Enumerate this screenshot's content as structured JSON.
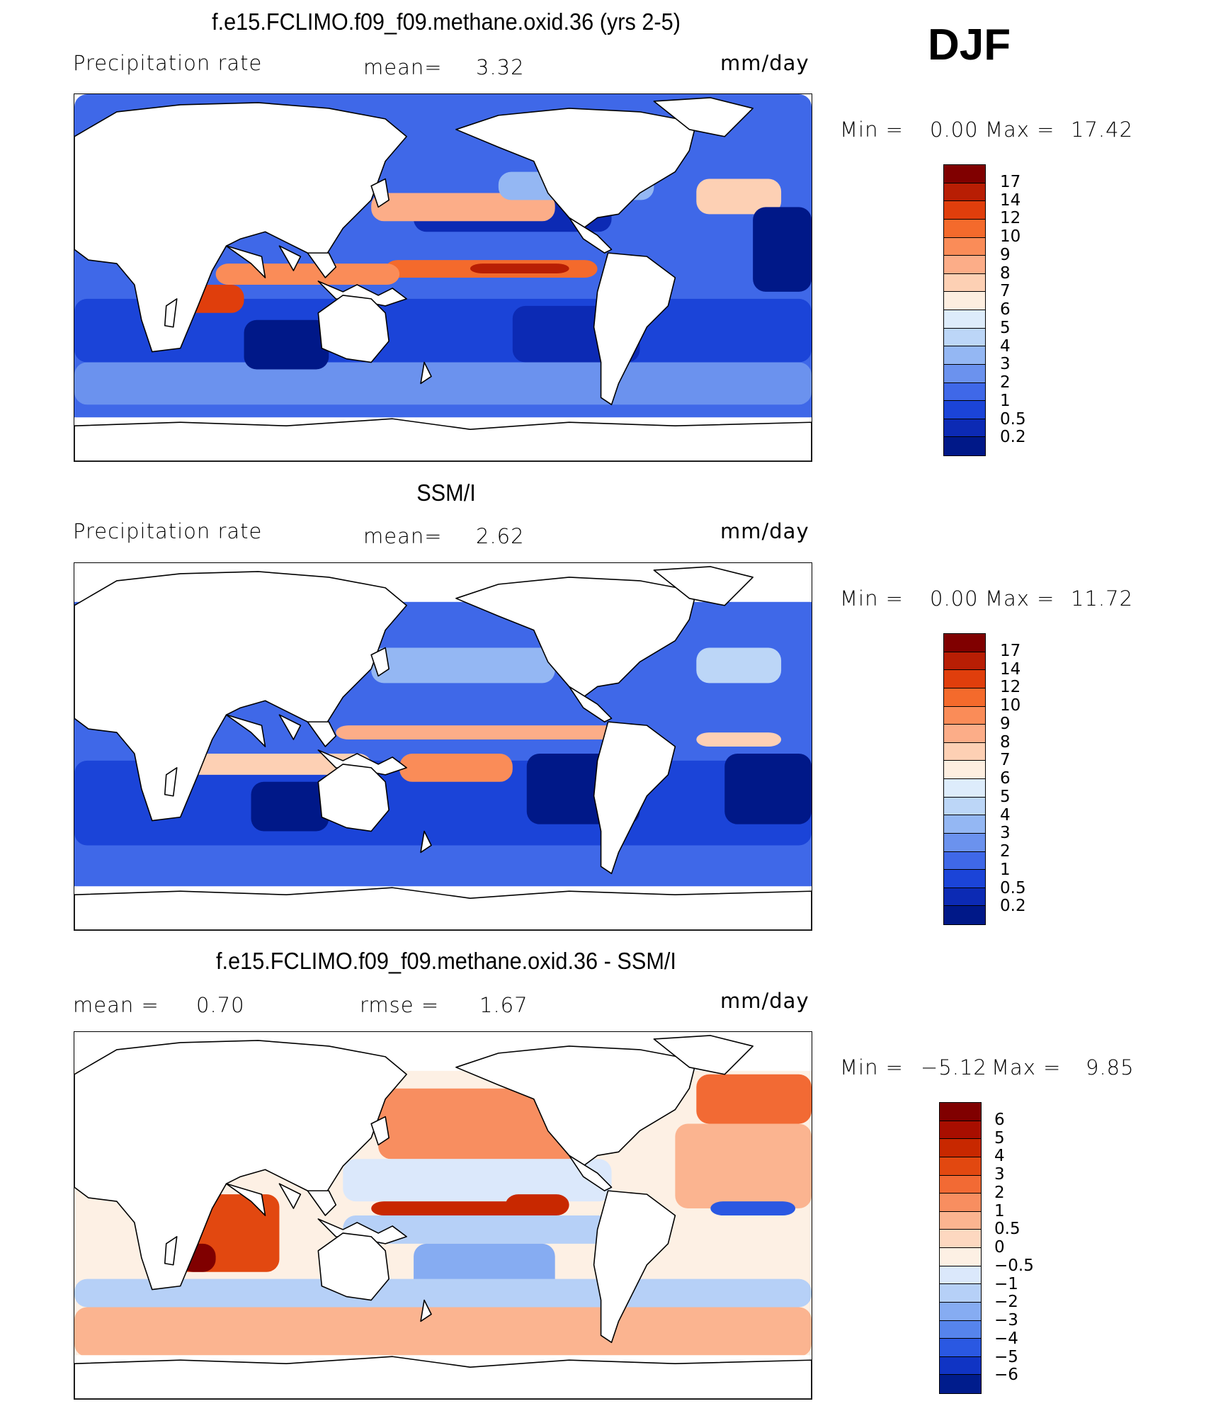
{
  "season": "DJF",
  "units": "mm/day",
  "panels": [
    {
      "title": "f.e15.FCLIMO.f09_f09.methane.oxid.36 (yrs 2-5)",
      "variable": "Precipitation  rate",
      "mean_label": "mean=",
      "mean_value": "3.32",
      "units": "mm/day",
      "min_label": "Min  =",
      "min_value": "0.00",
      "max_label": "Max  =",
      "max_value": "17.42",
      "colorbar": {
        "labels": [
          "17",
          "14",
          "12",
          "10",
          "9",
          "8",
          "7",
          "6",
          "5",
          "4",
          "3",
          "2",
          "1",
          "0.5",
          "0.2"
        ],
        "colors": [
          "#800000",
          "#b81e04",
          "#e03e0c",
          "#f46a2c",
          "#fa8c58",
          "#fcad88",
          "#fdd0b4",
          "#fdeee0",
          "#ddecfb",
          "#bcd6f7",
          "#94b7f3",
          "#6b92ee",
          "#3f68e8",
          "#1b44d8",
          "#0c2ab4",
          "#001888"
        ]
      },
      "map_style": "model"
    },
    {
      "title": "SSM/I",
      "variable": "Precipitation  rate",
      "mean_label": "mean=",
      "mean_value": "2.62",
      "units": "mm/day",
      "min_label": "Min  =",
      "min_value": "0.00",
      "max_label": "Max  =",
      "max_value": "11.72",
      "colorbar": {
        "labels": [
          "17",
          "14",
          "12",
          "10",
          "9",
          "8",
          "7",
          "6",
          "5",
          "4",
          "3",
          "2",
          "1",
          "0.5",
          "0.2"
        ],
        "colors": [
          "#800000",
          "#b81e04",
          "#e03e0c",
          "#f46a2c",
          "#fa8c58",
          "#fcad88",
          "#fdd0b4",
          "#fdeee0",
          "#ddecfb",
          "#bcd6f7",
          "#94b7f3",
          "#6b92ee",
          "#3f68e8",
          "#1b44d8",
          "#0c2ab4",
          "#001888"
        ]
      },
      "map_style": "obs"
    },
    {
      "title": "f.e15.FCLIMO.f09_f09.methane.oxid.36 - SSM/I",
      "mean_label": "mean  =",
      "mean_value": "0.70",
      "rmse_label": "rmse  =",
      "rmse_value": "1.67",
      "units": "mm/day",
      "min_label": "Min  =",
      "min_value": "−5.12",
      "max_label": "Max  =",
      "max_value": "9.85",
      "colorbar": {
        "labels": [
          "6",
          "5",
          "4",
          "3",
          "2",
          "1",
          "0.5",
          "0",
          "−0.5",
          "−1",
          "−2",
          "−3",
          "−4",
          "−5",
          "−6"
        ],
        "colors": [
          "#800000",
          "#a80e00",
          "#c82800",
          "#e24810",
          "#f26a34",
          "#f88e60",
          "#fbb490",
          "#fdd8c0",
          "#fdf0e4",
          "#dbe8fb",
          "#b6d0f7",
          "#86acf2",
          "#5684ec",
          "#2a58e2",
          "#1034c4",
          "#001c8c"
        ]
      },
      "map_style": "diff"
    }
  ]
}
